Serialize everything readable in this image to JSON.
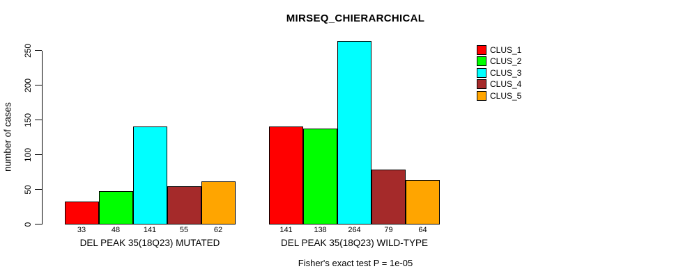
{
  "chart_data": {
    "type": "bar",
    "title": "MIRSEQ_CHIERARCHICAL",
    "ylabel": "number of cases",
    "xlabel": "",
    "ylim": [
      0,
      250
    ],
    "yticks": [
      0,
      50,
      100,
      150,
      200,
      250
    ],
    "grid": false,
    "legend_position": "right-inside-top",
    "categories": [
      "DEL PEAK 35(18Q23) MUTATED",
      "DEL PEAK 35(18Q23) WILD-TYPE"
    ],
    "series": [
      {
        "name": "CLUS_1",
        "color": "#FF0000",
        "values": [
          33,
          141
        ]
      },
      {
        "name": "CLUS_2",
        "color": "#00FF00",
        "values": [
          48,
          138
        ]
      },
      {
        "name": "CLUS_3",
        "color": "#00FFFF",
        "values": [
          141,
          264
        ]
      },
      {
        "name": "CLUS_4",
        "color": "#A52A2A",
        "values": [
          55,
          79
        ]
      },
      {
        "name": "CLUS_5",
        "color": "#FFA500",
        "values": [
          62,
          64
        ]
      }
    ],
    "bar_value_labels": [
      [
        33,
        48,
        141,
        55,
        62
      ],
      [
        141,
        138,
        264,
        79,
        64
      ]
    ],
    "caption": "Fisher's exact test P = 1e-05",
    "axis_color": "#000000",
    "background_color": "#FFFFFF"
  }
}
